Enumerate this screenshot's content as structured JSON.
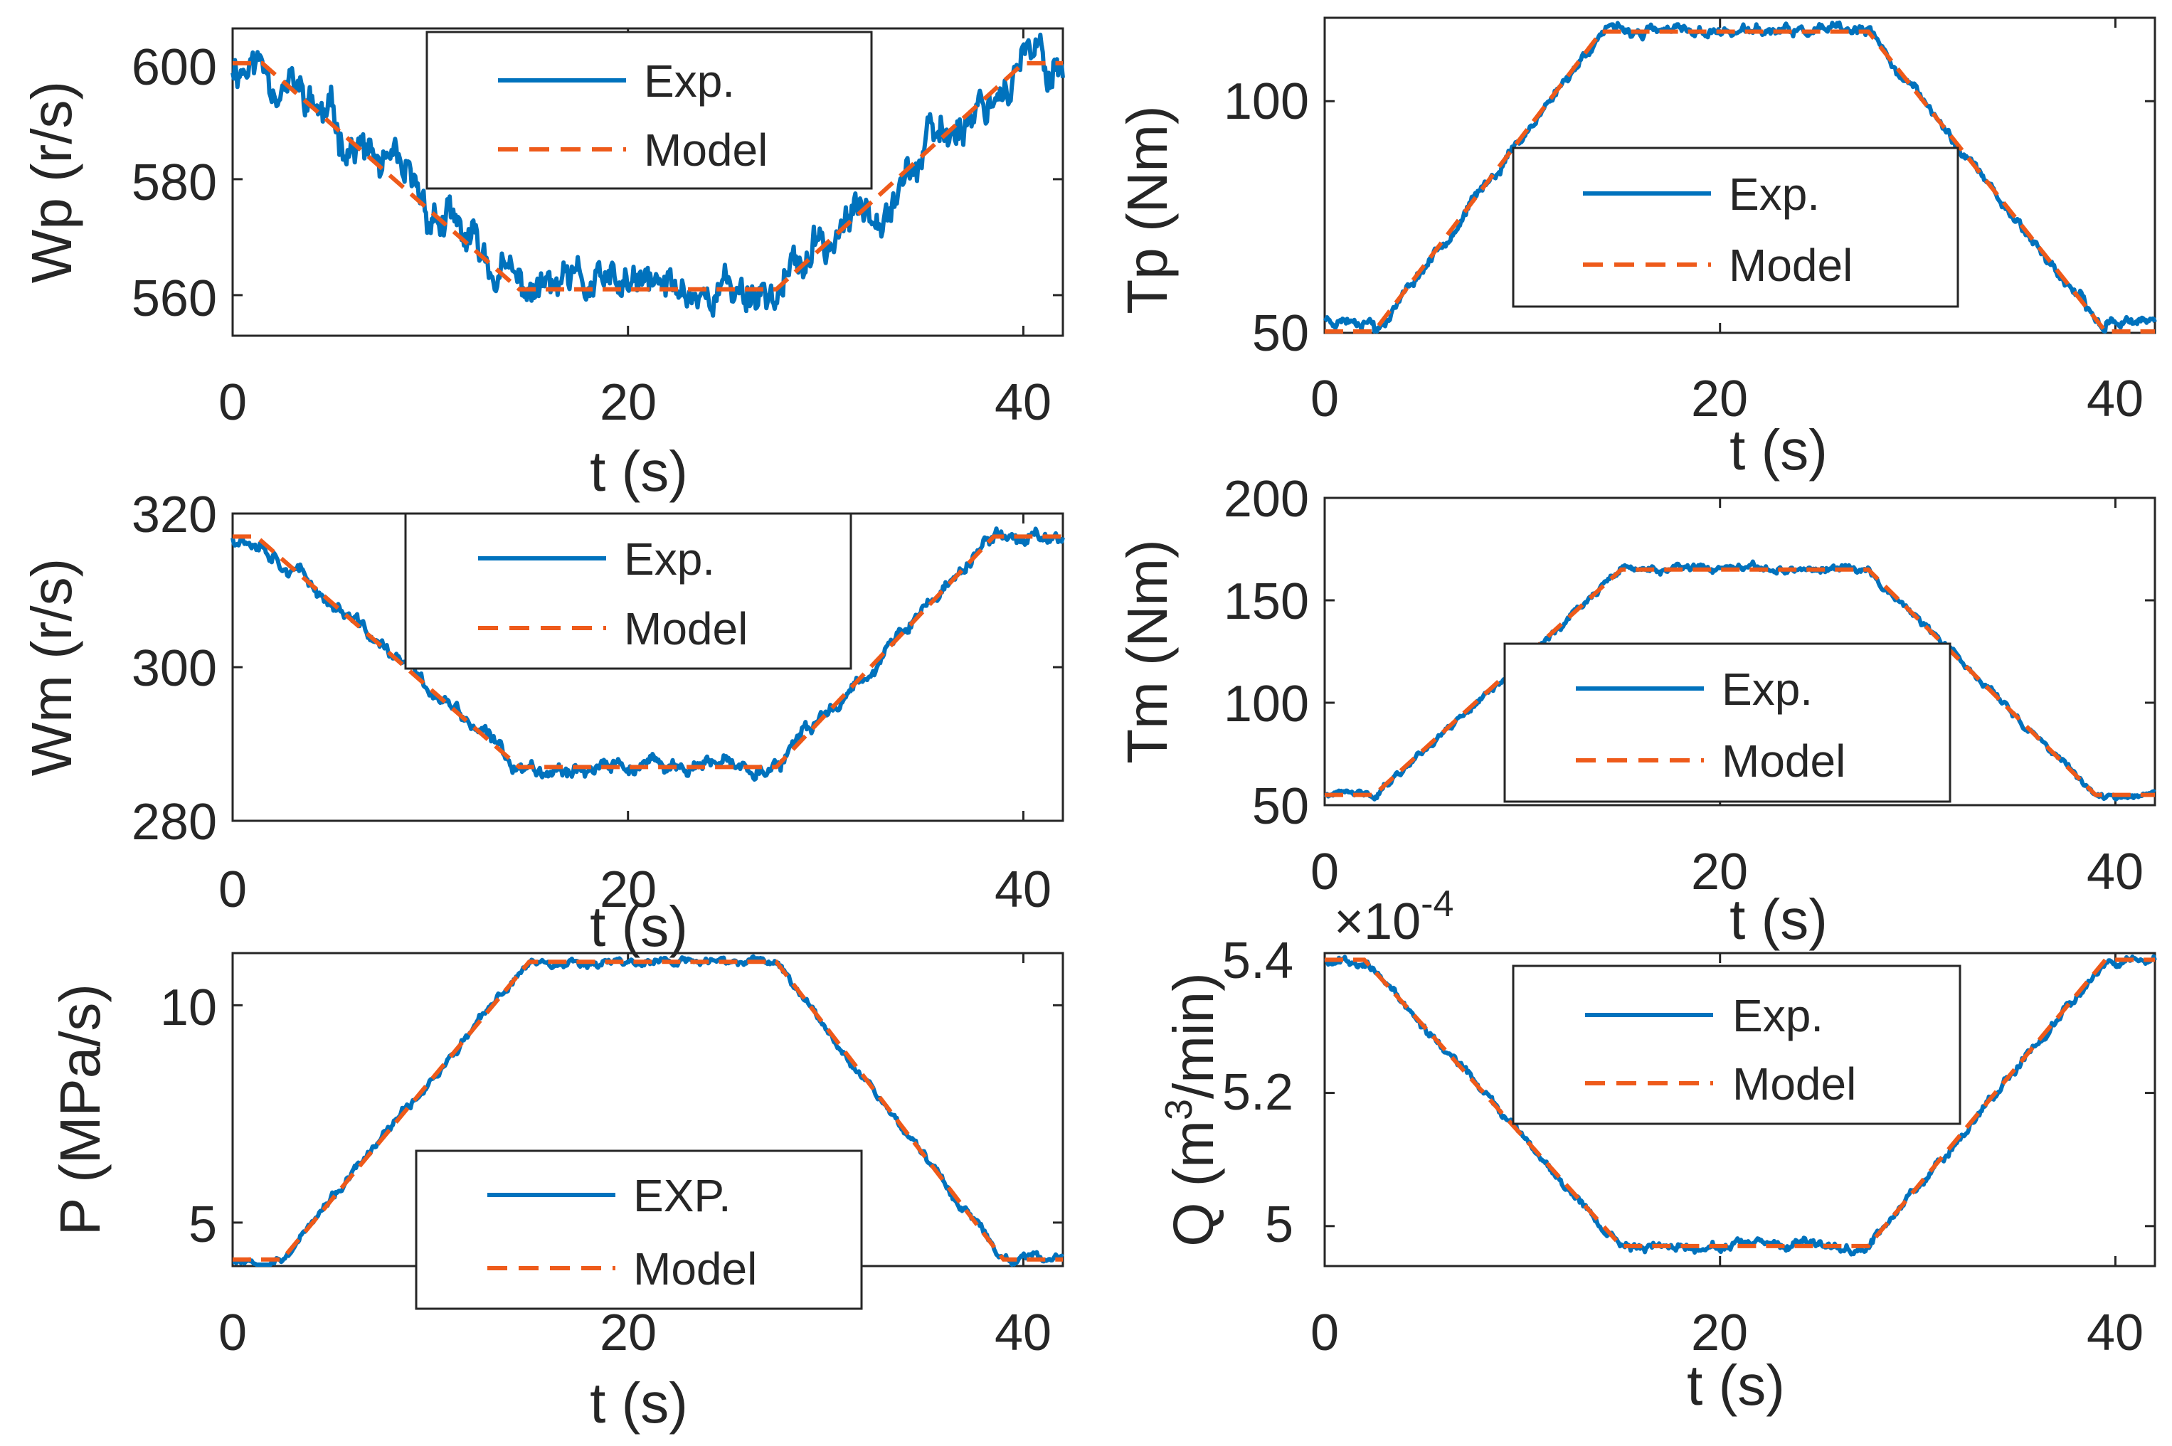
{
  "colors": {
    "exp": "#0072BD",
    "model": "#EE5A1A",
    "axis": "#262626"
  },
  "chart_data": [
    {
      "id": "wp",
      "type": "line",
      "xlabel": "t (s)",
      "ylabel": "Wp (r/s)",
      "xlim": [
        0,
        42
      ],
      "ylim": [
        553,
        606
      ],
      "xticks": [
        0,
        20,
        40
      ],
      "xticklabels": [
        "0",
        "20",
        "40"
      ],
      "yticks": [
        560,
        580,
        600
      ],
      "yticklabels": [
        "560",
        "580",
        "600"
      ],
      "legend": {
        "position": "top-center",
        "labels": [
          "Exp.",
          "Model"
        ]
      },
      "model": {
        "x": [
          0,
          1.5,
          14.5,
          27.5,
          40,
          42
        ],
        "y": [
          600,
          600,
          561,
          561,
          600,
          600
        ]
      },
      "exp_noise": 4.5,
      "seed": 11
    },
    {
      "id": "tp",
      "type": "line",
      "xlabel": "t (s)",
      "ylabel": "Tp (Nm)",
      "xlim": [
        0,
        42
      ],
      "ylim": [
        50,
        118
      ],
      "xticks": [
        0,
        20,
        40
      ],
      "xticklabels": [
        "0",
        "20",
        "40"
      ],
      "yticks": [
        50,
        100
      ],
      "yticklabels": [
        "50",
        "100"
      ],
      "legend": {
        "position": "center",
        "labels": [
          "Exp.",
          "Model"
        ]
      },
      "model": {
        "x": [
          0,
          2.5,
          14,
          27.5,
          39.5,
          42
        ],
        "y": [
          50,
          50,
          115,
          115,
          50,
          50
        ]
      },
      "exp_noise": 1.4,
      "seed": 23,
      "exp_offset_flat": 3
    },
    {
      "id": "wm",
      "type": "line",
      "xlabel": "t (s)",
      "ylabel": "Wm (r/s)",
      "xlim": [
        0,
        42
      ],
      "ylim": [
        280,
        320
      ],
      "xticks": [
        0,
        20,
        40
      ],
      "xticklabels": [
        "0",
        "20",
        "40"
      ],
      "yticks": [
        280,
        300,
        320
      ],
      "yticklabels": [
        "280",
        "300",
        "320"
      ],
      "legend": {
        "position": "top-center",
        "labels": [
          "Exp.",
          "Model"
        ]
      },
      "model": {
        "x": [
          0,
          1.2,
          14.5,
          27.5,
          38.5,
          42
        ],
        "y": [
          317,
          317,
          287,
          287,
          317,
          317
        ]
      },
      "exp_noise": 1.2,
      "seed": 37
    },
    {
      "id": "tm",
      "type": "line",
      "xlabel": "t (s)",
      "ylabel": "Tm (Nm)",
      "xlim": [
        0,
        42
      ],
      "ylim": [
        50,
        200
      ],
      "xticks": [
        0,
        20,
        40
      ],
      "xticklabels": [
        "0",
        "20",
        "40"
      ],
      "yticks": [
        50,
        100,
        150,
        200
      ],
      "yticklabels": [
        "50",
        "100",
        "150",
        "200"
      ],
      "legend": {
        "position": "center",
        "labels": [
          "Exp.",
          "Model"
        ]
      },
      "model": {
        "x": [
          0,
          2.5,
          15,
          27.5,
          39,
          42
        ],
        "y": [
          55,
          55,
          165,
          165,
          55,
          55
        ]
      },
      "exp_noise": 2.2,
      "seed": 41
    },
    {
      "id": "p",
      "type": "line",
      "xlabel": "t (s)",
      "ylabel": "P (MPa/s)",
      "xlim": [
        0,
        42
      ],
      "ylim": [
        4,
        11.2
      ],
      "xticks": [
        0,
        20,
        40
      ],
      "xticklabels": [
        "0",
        "20",
        "40"
      ],
      "yticks": [
        5,
        10
      ],
      "yticklabels": [
        "5",
        "10"
      ],
      "legend": {
        "position": "bottom-center",
        "labels": [
          "EXP.",
          "Model"
        ]
      },
      "model": {
        "x": [
          0,
          2.5,
          15,
          27.5,
          39,
          42
        ],
        "y": [
          4.15,
          4.15,
          11,
          11,
          4.15,
          4.15
        ]
      },
      "exp_noise": 0.12,
      "seed": 53
    },
    {
      "id": "q",
      "type": "line",
      "xlabel": "t (s)",
      "ylabel_main": "Q (m",
      "ylabel_sup": "3",
      "ylabel_tail": "/min)",
      "xlim": [
        0,
        42
      ],
      "ylim": [
        4.94,
        5.41
      ],
      "xticks": [
        0,
        20,
        40
      ],
      "xticklabels": [
        "0",
        "20",
        "40"
      ],
      "yticks": [
        5.0,
        5.2,
        5.4
      ],
      "yticklabels": [
        "5",
        "5.2",
        "5.4"
      ],
      "exponent": {
        "base": "×10",
        "power": "-4"
      },
      "legend": {
        "position": "top-center",
        "labels": [
          "Exp.",
          "Model"
        ]
      },
      "model": {
        "x": [
          0,
          2,
          15,
          27.5,
          39.5,
          42
        ],
        "y": [
          5.4,
          5.4,
          4.97,
          4.97,
          5.4,
          5.4
        ]
      },
      "exp_noise": 0.008,
      "seed": 67
    }
  ]
}
